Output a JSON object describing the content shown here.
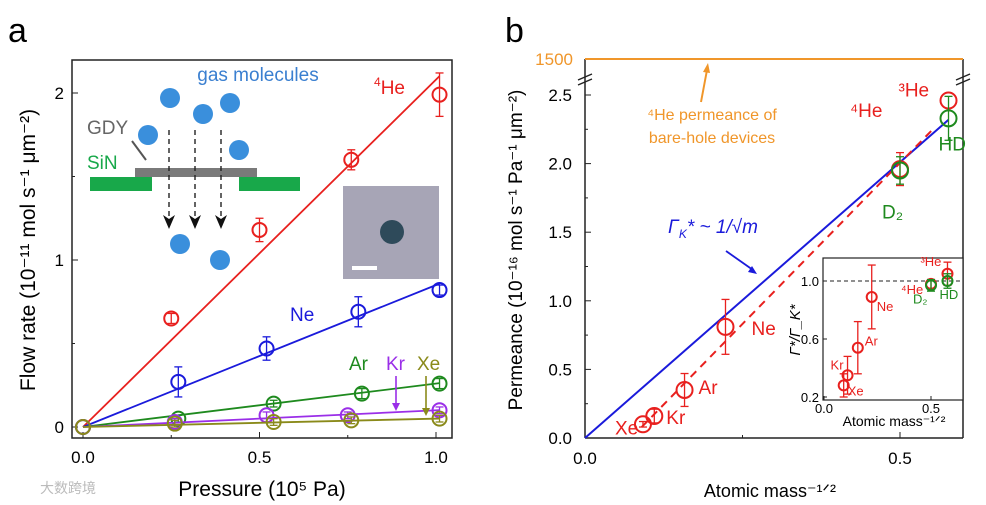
{
  "watermark": "大数跨境",
  "chart_data": [
    {
      "type": "scatter",
      "panel_label": "a",
      "xlabel": "Pressure (10⁵ Pa)",
      "ylabel": "Flow rate (10⁻¹¹ mol s⁻¹ μm⁻²)",
      "xlim": [
        -0.05,
        1.04
      ],
      "ylim": [
        -0.07,
        2.2
      ],
      "xticks": [
        "0.0",
        "0.5",
        "1.0"
      ],
      "xtick_values": [
        0,
        0.5,
        1.0
      ],
      "yticks": [
        "0",
        "1",
        "2"
      ],
      "ytick_values": [
        0,
        1,
        2
      ],
      "series": [
        {
          "name": "⁴He",
          "sup": "4",
          "base": "He",
          "color": "#e8201e",
          "slope": 2.08,
          "x": [
            0,
            0.25,
            0.5,
            0.76,
            1.01
          ],
          "y": [
            0,
            0.65,
            1.18,
            1.6,
            1.99
          ],
          "err": [
            0,
            0.03,
            0.07,
            0.06,
            0.13
          ]
        },
        {
          "name": "Ne",
          "color": "#1a1adb",
          "slope": 0.85,
          "x": [
            0,
            0.27,
            0.52,
            0.78,
            1.01
          ],
          "y": [
            0,
            0.27,
            0.47,
            0.69,
            0.82
          ],
          "err": [
            0,
            0.09,
            0.07,
            0.09,
            0.03
          ]
        },
        {
          "name": "Ar",
          "color": "#1e8a1e",
          "slope": 0.26,
          "x": [
            0,
            0.27,
            0.54,
            0.79,
            1.01
          ],
          "y": [
            0,
            0.05,
            0.14,
            0.2,
            0.26
          ],
          "err": [
            0,
            0.02,
            0.02,
            0.03,
            0.03
          ]
        },
        {
          "name": "Kr",
          "color": "#9a2ee8",
          "slope": 0.1,
          "x": [
            0,
            0.26,
            0.52,
            0.75,
            1.01
          ],
          "y": [
            0,
            0.03,
            0.07,
            0.07,
            0.1
          ],
          "err": [
            0,
            0.02,
            0.02,
            0.02,
            0.02
          ]
        },
        {
          "name": "Xe",
          "color": "#8a8a1a",
          "slope": 0.05,
          "x": [
            0,
            0.26,
            0.54,
            0.76,
            1.01
          ],
          "y": [
            0,
            0.02,
            0.03,
            0.04,
            0.05
          ],
          "err": [
            0,
            0.02,
            0.02,
            0.02,
            0.02
          ]
        }
      ],
      "schematic": {
        "title": "gas molecules",
        "membrane": "GDY",
        "substrate": "SiN"
      }
    },
    {
      "type": "scatter",
      "panel_label": "b",
      "xlabel": "Atomic mass⁻¹ᐟ²",
      "ylabel": "Permeance (10⁻¹⁶ mol s⁻¹ Pa⁻¹ μm⁻²)",
      "xlim": [
        0,
        0.6
      ],
      "ylim": [
        0,
        2.5
      ],
      "xticks": [
        "0.0",
        "0.5"
      ],
      "xtick_values": [
        0,
        0.5
      ],
      "yticks": [
        "0.0",
        "0.5",
        "1.0",
        "1.5",
        "2.0",
        "2.5"
      ],
      "ytick_values": [
        0,
        0.5,
        1,
        1.5,
        2,
        2.5
      ],
      "break_value": "1500",
      "break_color": "#f0962a",
      "break_annotation": [
        "⁴He permeance of",
        "bare-hole devices"
      ],
      "model_label": "Γ",
      "model_label_sub": "K",
      "model_label_rest": "* ~ 1/√m",
      "model_slope": 4.02,
      "points": [
        {
          "name": "Xe",
          "x": 0.092,
          "y": 0.1,
          "err": 0.02,
          "color": "#e8201e"
        },
        {
          "name": "Kr",
          "x": 0.11,
          "y": 0.16,
          "err": 0.05,
          "color": "#e8201e"
        },
        {
          "name": "Ar",
          "x": 0.158,
          "y": 0.35,
          "err": 0.12,
          "color": "#e8201e"
        },
        {
          "name": "Ne",
          "x": 0.223,
          "y": 0.81,
          "err": 0.2,
          "color": "#e8201e"
        },
        {
          "name": "⁴He",
          "x": 0.5,
          "y": 1.96,
          "err": 0.12,
          "color": "#e8201e"
        },
        {
          "name": "D₂",
          "x": 0.5,
          "y": 1.95,
          "err": 0.1,
          "color": "#1e8a1e"
        },
        {
          "name": "³He",
          "x": 0.577,
          "y": 2.46,
          "err": 0.0,
          "color": "#e8201e"
        },
        {
          "name": "HD",
          "x": 0.577,
          "y": 2.33,
          "err": 0.16,
          "color": "#1e8a1e"
        }
      ],
      "inset": {
        "xlabel": "Atomic mass⁻¹ᐟ²",
        "ylabel": "Γ*/Γ_K*",
        "xlim": [
          0,
          0.65
        ],
        "ylim": [
          0.2,
          1.15
        ],
        "xticks": [
          "0.0",
          "0.5"
        ],
        "xtick_values": [
          0,
          0.5
        ],
        "yticks": [
          "0.2",
          "0.6",
          "1.0"
        ],
        "ytick_values": [
          0.2,
          0.6,
          1.0
        ],
        "reference": 1.0,
        "points": [
          {
            "name": "Xe",
            "x": 0.092,
            "y": 0.28,
            "err": 0.08,
            "color": "#e8201e"
          },
          {
            "name": "Kr",
            "x": 0.11,
            "y": 0.35,
            "err": 0.13,
            "color": "#e8201e"
          },
          {
            "name": "Ar",
            "x": 0.158,
            "y": 0.54,
            "err": 0.18,
            "color": "#e8201e"
          },
          {
            "name": "Ne",
            "x": 0.223,
            "y": 0.89,
            "err": 0.22,
            "color": "#e8201e"
          },
          {
            "name": "⁴He",
            "x": 0.5,
            "y": 0.98,
            "err": 0.03,
            "color": "#e8201e"
          },
          {
            "name": "D₂",
            "x": 0.5,
            "y": 0.97,
            "err": 0.04,
            "color": "#1e8a1e"
          },
          {
            "name": "³He",
            "x": 0.577,
            "y": 1.05,
            "err": 0.08,
            "color": "#e8201e"
          },
          {
            "name": "HD",
            "x": 0.577,
            "y": 1.0,
            "err": 0.05,
            "color": "#1e8a1e"
          }
        ]
      }
    }
  ]
}
